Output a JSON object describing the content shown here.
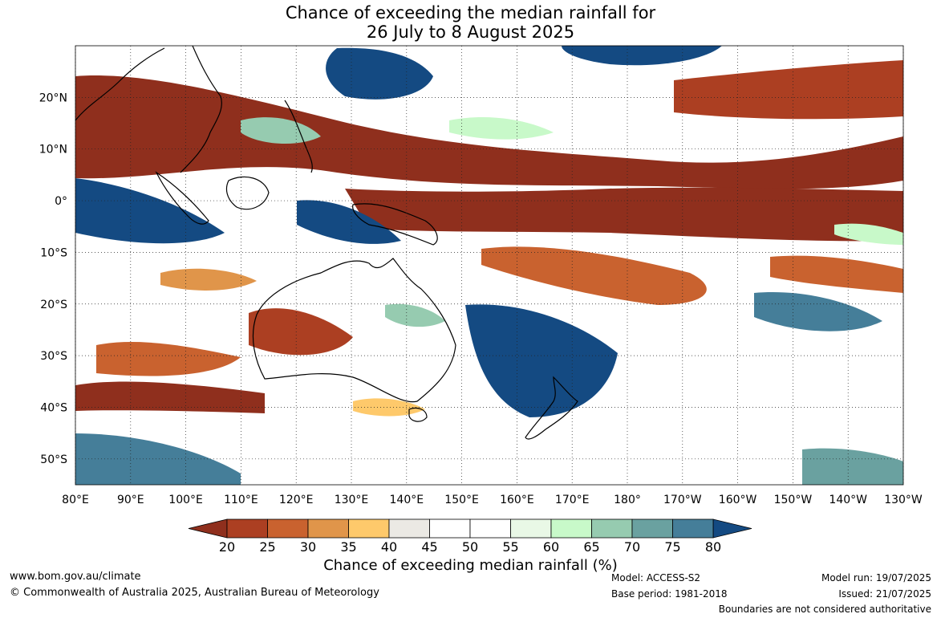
{
  "title_line1": "Chance of exceeding the median rainfall for",
  "title_line2": "26 July to 8 August 2025",
  "map": {
    "lon_range": [
      80,
      230
    ],
    "lat_range": [
      -55,
      30
    ],
    "lat_ticks": [
      {
        "lat": 20,
        "label": "20°N"
      },
      {
        "lat": 10,
        "label": "10°N"
      },
      {
        "lat": 0,
        "label": "0°"
      },
      {
        "lat": -10,
        "label": "10°S"
      },
      {
        "lat": -20,
        "label": "20°S"
      },
      {
        "lat": -30,
        "label": "30°S"
      },
      {
        "lat": -40,
        "label": "40°S"
      },
      {
        "lat": -50,
        "label": "50°S"
      }
    ],
    "lon_ticks": [
      {
        "lon": 80,
        "label": "80°E"
      },
      {
        "lon": 90,
        "label": "90°E"
      },
      {
        "lon": 100,
        "label": "100°E"
      },
      {
        "lon": 110,
        "label": "110°E"
      },
      {
        "lon": 120,
        "label": "120°E"
      },
      {
        "lon": 130,
        "label": "130°E"
      },
      {
        "lon": 140,
        "label": "140°E"
      },
      {
        "lon": 150,
        "label": "150°E"
      },
      {
        "lon": 160,
        "label": "160°E"
      },
      {
        "lon": 170,
        "label": "170°E"
      },
      {
        "lon": 180,
        "label": "180°"
      },
      {
        "lon": 190,
        "label": "170°W"
      },
      {
        "lon": 200,
        "label": "160°W"
      },
      {
        "lon": 210,
        "label": "150°W"
      },
      {
        "lon": 220,
        "label": "140°W"
      },
      {
        "lon": 230,
        "label": "130°W"
      }
    ],
    "background_color": "#ffffff",
    "gridline_color": "#222222"
  },
  "colorbar": {
    "labels": [
      "20",
      "25",
      "30",
      "35",
      "40",
      "45",
      "50",
      "55",
      "60",
      "65",
      "70",
      "75",
      "80"
    ],
    "colors": [
      "#ac3f22",
      "#c9622f",
      "#e0954a",
      "#fec96b",
      "#ebe9e4",
      "#ffffff",
      "#ffffff",
      "#e9f8e6",
      "#c8f9c9",
      "#96cbb0",
      "#6aa1a0",
      "#457e99"
    ],
    "below_color": "#8f2f1d",
    "above_color": "#144a82",
    "label": "Chance of exceeding median rainfall (%)"
  },
  "footer": {
    "website": "www.bom.gov.au/climate",
    "copyright": "© Commonwealth of Australia 2025, Australian Bureau of Meteorology",
    "model": "Model: ACCESS-S2",
    "base_period": "Base period: 1981-2018",
    "model_run": "Model run: 19/07/2025",
    "issued": "Issued: 21/07/2025",
    "disclaimer": "Boundaries are not considered authoritative"
  }
}
